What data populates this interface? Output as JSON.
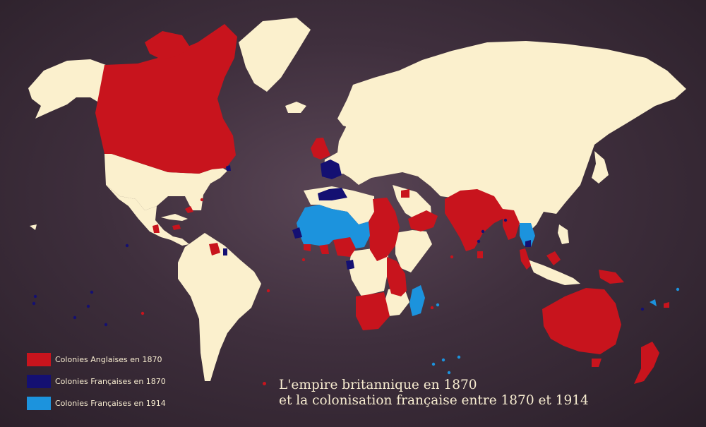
{
  "colors": {
    "land": "#fbf0cd",
    "british_1870": "#c8141d",
    "french_1870": "#141072",
    "french_1914": "#1c93dd"
  },
  "legend": {
    "items": [
      {
        "label": "Colonies Anglaises en 1870",
        "key": "british_1870"
      },
      {
        "label": "Colonies Françaises en 1870",
        "key": "french_1870"
      },
      {
        "label": "Colonies Françaises en 1914",
        "key": "french_1914"
      }
    ]
  },
  "title": {
    "line1": "L'empire britannique en 1870",
    "line2": "et la colonisation française entre 1870 et 1914"
  }
}
